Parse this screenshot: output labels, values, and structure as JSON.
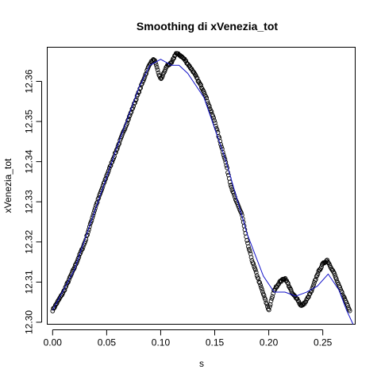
{
  "chart_data": {
    "type": "scatter",
    "title": "Smoothing di xVenezia_tot",
    "xlabel": "s",
    "ylabel": "xVenezia_tot",
    "xlim": [
      -0.005,
      0.28
    ],
    "ylim": [
      12.2995,
      12.3685
    ],
    "xticks": [
      0.0,
      0.05,
      0.1,
      0.15,
      0.2,
      0.25
    ],
    "xtick_labels": [
      "0.00",
      "0.05",
      "0.10",
      "0.15",
      "0.20",
      "0.25"
    ],
    "yticks": [
      12.3,
      12.31,
      12.32,
      12.33,
      12.34,
      12.35,
      12.36
    ],
    "ytick_labels": [
      "12.30",
      "12.31",
      "12.32",
      "12.33",
      "12.34",
      "12.35",
      "12.36"
    ],
    "point_anchors": {
      "x": [
        0.0,
        0.01,
        0.02,
        0.03,
        0.04,
        0.05,
        0.06,
        0.07,
        0.08,
        0.085,
        0.09,
        0.094,
        0.098,
        0.1,
        0.102,
        0.106,
        0.11,
        0.114,
        0.118,
        0.122,
        0.13,
        0.14,
        0.15,
        0.155,
        0.16,
        0.165,
        0.17,
        0.175,
        0.18,
        0.185,
        0.19,
        0.195,
        0.2,
        0.205,
        0.21,
        0.215,
        0.218,
        0.222,
        0.226,
        0.23,
        0.234,
        0.24,
        0.245,
        0.25,
        0.254,
        0.26,
        0.265,
        0.27,
        0.275
      ],
      "y": [
        12.303,
        12.3075,
        12.3135,
        12.32,
        12.329,
        12.3365,
        12.3435,
        12.3505,
        12.3575,
        12.361,
        12.3645,
        12.3655,
        12.362,
        12.3605,
        12.3615,
        12.364,
        12.3645,
        12.367,
        12.3665,
        12.3655,
        12.3625,
        12.3575,
        12.35,
        12.345,
        12.34,
        12.334,
        12.33,
        12.327,
        12.32,
        12.315,
        12.311,
        12.307,
        12.303,
        12.308,
        12.31,
        12.311,
        12.3095,
        12.307,
        12.306,
        12.304,
        12.305,
        12.308,
        12.312,
        12.3145,
        12.3155,
        12.3125,
        12.309,
        12.306,
        12.303
      ]
    },
    "smooth": {
      "x": [
        0.0,
        0.02,
        0.04,
        0.06,
        0.08,
        0.09,
        0.1,
        0.11,
        0.117,
        0.125,
        0.14,
        0.16,
        0.18,
        0.195,
        0.205,
        0.215,
        0.225,
        0.235,
        0.245,
        0.255,
        0.265,
        0.272,
        0.278
      ],
      "y": [
        12.303,
        12.313,
        12.3285,
        12.344,
        12.3585,
        12.364,
        12.3655,
        12.364,
        12.364,
        12.362,
        12.356,
        12.3405,
        12.322,
        12.3115,
        12.3075,
        12.3075,
        12.3065,
        12.3075,
        12.309,
        12.312,
        12.308,
        12.303,
        12.2995
      ]
    },
    "n_points": 420,
    "noise_seed": 7,
    "colors": {
      "points": "#000000",
      "smooth": "#1010c8",
      "background": "#ffffff"
    }
  }
}
